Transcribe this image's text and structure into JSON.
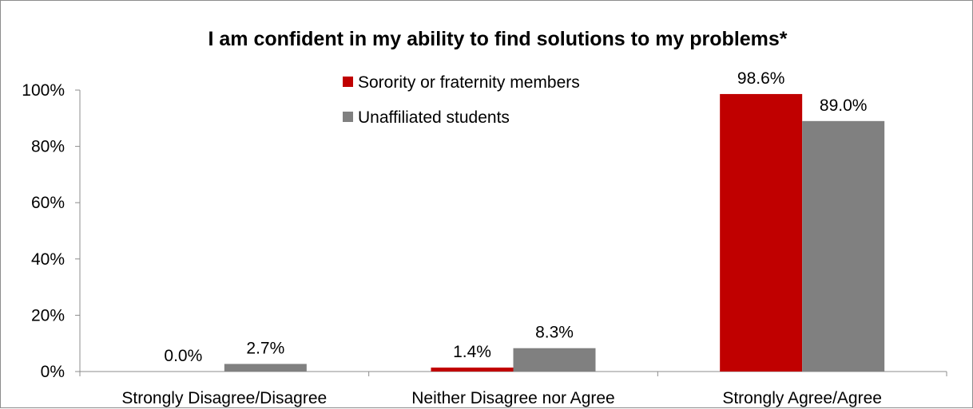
{
  "chart_data": {
    "type": "bar",
    "title": "I am confident in my ability to find solutions to my problems*",
    "categories": [
      "Strongly Disagree/Disagree",
      "Neither Disagree nor Agree",
      "Strongly Agree/Agree"
    ],
    "series": [
      {
        "name": "Sorority or fraternity members",
        "color": "#c00000",
        "values": [
          0.0,
          1.4,
          98.6
        ],
        "labels": [
          "0.0%",
          "1.4%",
          "98.6%"
        ]
      },
      {
        "name": "Unaffiliated students",
        "color": "#808080",
        "values": [
          2.7,
          8.3,
          89.0
        ],
        "labels": [
          "2.7%",
          "8.3%",
          "89.0%"
        ]
      }
    ],
    "ylim": [
      0,
      100
    ],
    "yticks": [
      0,
      20,
      40,
      60,
      80,
      100
    ],
    "ytick_labels": [
      "0%",
      "20%",
      "40%",
      "60%",
      "80%",
      "100%"
    ],
    "grid": false,
    "legend_position": "top-center"
  }
}
